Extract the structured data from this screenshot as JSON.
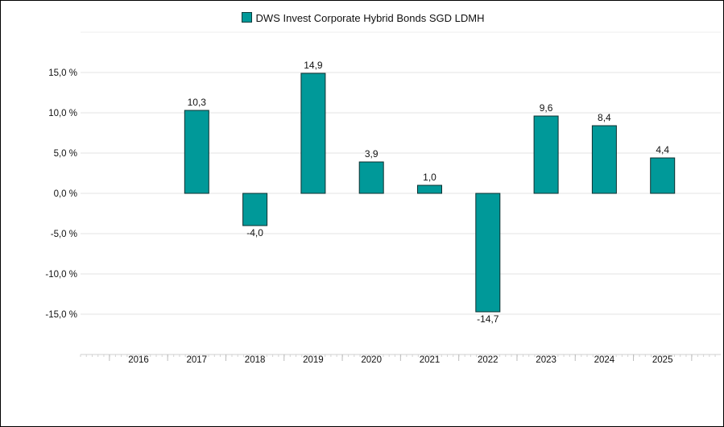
{
  "chart_data": {
    "type": "bar",
    "series": [
      {
        "name": "DWS Invest Corporate Hybrid Bonds SGD LDMH",
        "values": [
          null,
          10.3,
          -4.0,
          14.9,
          3.9,
          1.0,
          -14.7,
          9.6,
          8.4,
          4.4
        ],
        "value_labels": [
          "",
          "10,3",
          "-4,0",
          "14,9",
          "3,9",
          "1,0",
          "-14,7",
          "9,6",
          "8,4",
          "4,4"
        ],
        "color": "#009999"
      }
    ],
    "categories": [
      "2016",
      "2017",
      "2018",
      "2019",
      "2020",
      "2021",
      "2022",
      "2023",
      "2024",
      "2025"
    ],
    "y_ticks": [
      15,
      10,
      5,
      0,
      -5,
      -10,
      -15
    ],
    "y_tick_labels": [
      "15,0 %",
      "10,0 %",
      "5,0 %",
      "0,0 %",
      "-5,0 %",
      "-10,0 %",
      "-15,0 %"
    ],
    "ylim": [
      -20,
      20
    ],
    "grid": true,
    "legend": "top-center"
  }
}
